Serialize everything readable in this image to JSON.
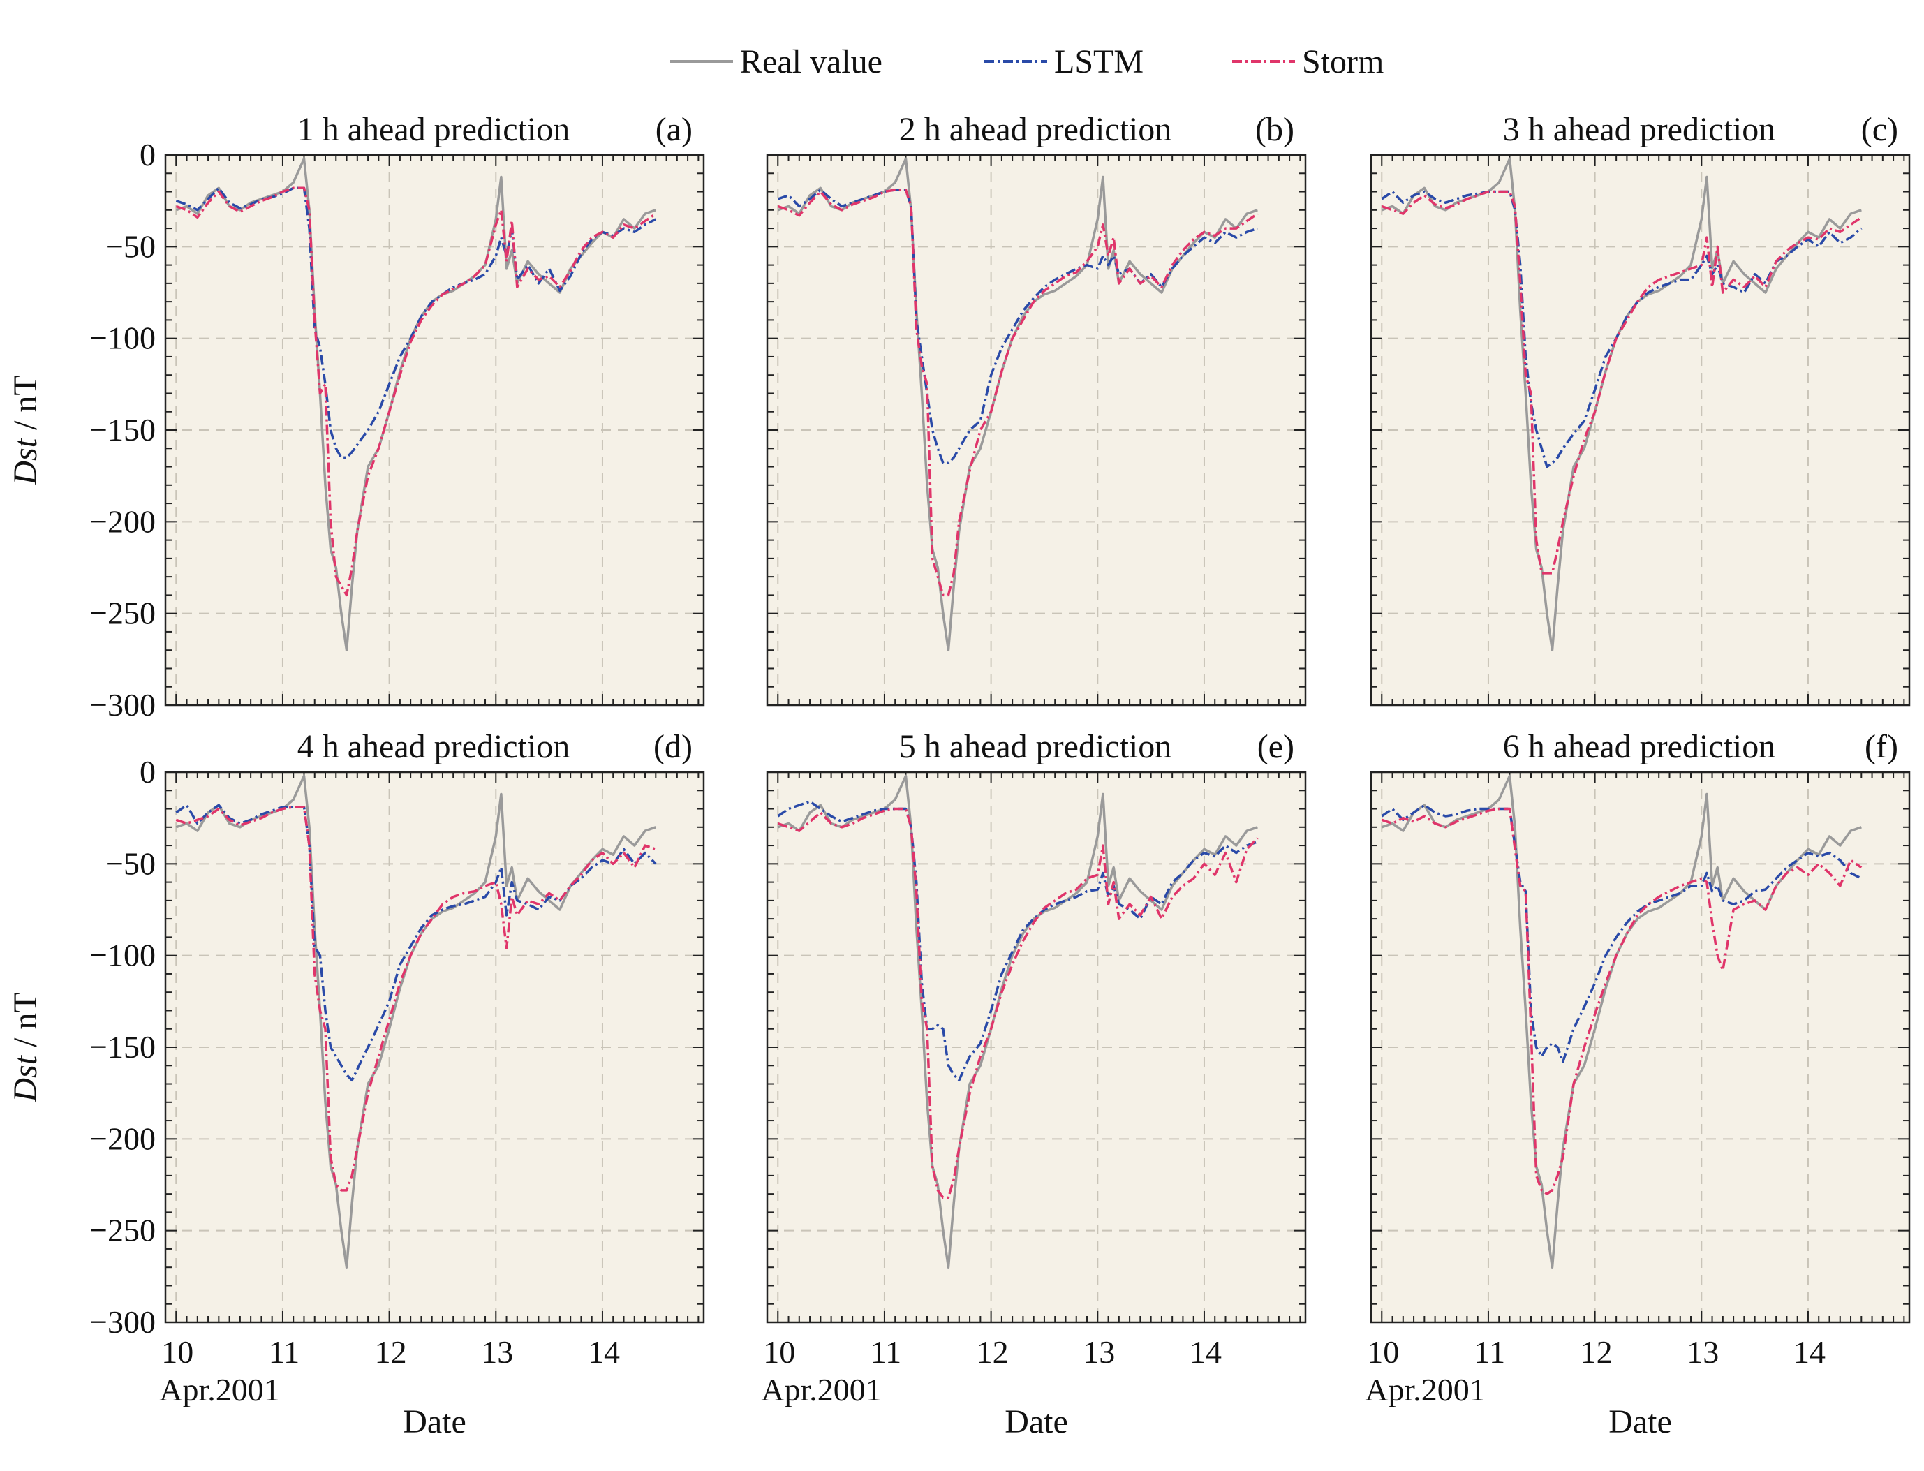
{
  "legend": [
    {
      "key": "real",
      "label": "Real value",
      "color": "#9a9a9a",
      "dash": "solid"
    },
    {
      "key": "lstm",
      "label": "LSTM",
      "color": "#2a4aa8",
      "dash": "dashdot"
    },
    {
      "key": "storm",
      "label": "Storm",
      "color": "#e0356a",
      "dash": "dashdot"
    }
  ],
  "colors": {
    "panel_background": "#f5f1e7",
    "grid": "#c9c4b8",
    "axes": "#222222"
  },
  "xlabel": "Date",
  "ylabel_main": "Dst",
  "ylabel_unit": " / nT",
  "x_month_label": "Apr.2001",
  "chart_data": {
    "type": "line",
    "x_unit": "day of April 2001",
    "xlim": [
      9.9,
      14.95
    ],
    "ylim": [
      -300,
      0
    ],
    "x_ticks": [
      10,
      11,
      12,
      13,
      14
    ],
    "y_ticks": [
      0,
      -50,
      -100,
      -150,
      -200,
      -250,
      -300
    ],
    "grid": true,
    "legend_position": "top-center",
    "x": [
      10.0,
      10.1,
      10.2,
      10.3,
      10.4,
      10.5,
      10.6,
      10.7,
      10.8,
      10.9,
      11.0,
      11.1,
      11.2,
      11.25,
      11.3,
      11.35,
      11.4,
      11.45,
      11.5,
      11.55,
      11.6,
      11.65,
      11.7,
      11.8,
      11.9,
      12.0,
      12.1,
      12.2,
      12.3,
      12.4,
      12.5,
      12.6,
      12.7,
      12.8,
      12.9,
      13.0,
      13.05,
      13.1,
      13.15,
      13.2,
      13.3,
      13.4,
      13.5,
      13.6,
      13.7,
      13.8,
      13.9,
      14.0,
      14.1,
      14.2,
      14.3,
      14.4,
      14.5
    ],
    "real": [
      -30,
      -28,
      -32,
      -22,
      -18,
      -28,
      -30,
      -26,
      -24,
      -22,
      -20,
      -15,
      -2,
      -30,
      -85,
      -130,
      -180,
      -215,
      -225,
      -250,
      -270,
      -235,
      -205,
      -170,
      -160,
      -140,
      -118,
      -100,
      -88,
      -80,
      -76,
      -74,
      -70,
      -66,
      -60,
      -35,
      -12,
      -62,
      -52,
      -70,
      -58,
      -65,
      -70,
      -75,
      -62,
      -55,
      -48,
      -42,
      -45,
      -35,
      -40,
      -32,
      -30
    ],
    "panels": [
      {
        "title": "1 h ahead prediction",
        "tag": "(a)",
        "lstm": [
          -25,
          -27,
          -30,
          -24,
          -18,
          -26,
          -29,
          -27,
          -24,
          -23,
          -21,
          -18,
          -18,
          -40,
          -95,
          -105,
          -125,
          -150,
          -160,
          -165,
          -165,
          -162,
          -158,
          -150,
          -140,
          -125,
          -110,
          -100,
          -88,
          -80,
          -76,
          -72,
          -70,
          -68,
          -65,
          -55,
          -45,
          -55,
          -40,
          -68,
          -60,
          -70,
          -62,
          -74,
          -66,
          -54,
          -46,
          -42,
          -44,
          -40,
          -42,
          -38,
          -35
        ],
        "storm": [
          -28,
          -30,
          -34,
          -26,
          -20,
          -28,
          -31,
          -28,
          -25,
          -23,
          -20,
          -18,
          -18,
          -30,
          -90,
          -130,
          -125,
          -200,
          -230,
          -235,
          -240,
          -225,
          -205,
          -175,
          -160,
          -140,
          -120,
          -102,
          -90,
          -82,
          -76,
          -73,
          -70,
          -66,
          -60,
          -38,
          -30,
          -58,
          -36,
          -72,
          -62,
          -68,
          -66,
          -72,
          -63,
          -52,
          -45,
          -42,
          -45,
          -38,
          -40,
          -36,
          -32
        ]
      },
      {
        "title": "2 h ahead prediction",
        "tag": "(b)",
        "lstm": [
          -24,
          -22,
          -28,
          -24,
          -19,
          -24,
          -28,
          -26,
          -24,
          -22,
          -20,
          -19,
          -19,
          -28,
          -90,
          -110,
          -130,
          -150,
          -160,
          -168,
          -168,
          -165,
          -160,
          -150,
          -145,
          -120,
          -105,
          -95,
          -85,
          -78,
          -72,
          -68,
          -65,
          -62,
          -60,
          -62,
          -55,
          -60,
          -55,
          -65,
          -62,
          -70,
          -65,
          -72,
          -62,
          -55,
          -50,
          -45,
          -48,
          -42,
          -45,
          -42,
          -40
        ],
        "storm": [
          -28,
          -30,
          -33,
          -26,
          -20,
          -27,
          -30,
          -27,
          -25,
          -23,
          -20,
          -19,
          -19,
          -28,
          -95,
          -115,
          -125,
          -220,
          -230,
          -240,
          -240,
          -228,
          -200,
          -172,
          -150,
          -140,
          -118,
          -100,
          -90,
          -80,
          -74,
          -70,
          -66,
          -64,
          -58,
          -50,
          -38,
          -55,
          -45,
          -70,
          -62,
          -70,
          -66,
          -72,
          -60,
          -52,
          -46,
          -42,
          -44,
          -40,
          -40,
          -36,
          -32
        ]
      },
      {
        "title": "3 h ahead prediction",
        "tag": "(c)",
        "lstm": [
          -24,
          -20,
          -26,
          -22,
          -20,
          -24,
          -26,
          -24,
          -22,
          -21,
          -20,
          -20,
          -20,
          -30,
          -60,
          -110,
          -135,
          -150,
          -160,
          -170,
          -168,
          -165,
          -160,
          -152,
          -145,
          -128,
          -110,
          -100,
          -88,
          -80,
          -75,
          -72,
          -70,
          -68,
          -68,
          -60,
          -55,
          -65,
          -60,
          -70,
          -72,
          -75,
          -65,
          -70,
          -58,
          -55,
          -50,
          -46,
          -50,
          -42,
          -48,
          -45,
          -40
        ],
        "storm": [
          -28,
          -30,
          -32,
          -26,
          -22,
          -27,
          -29,
          -27,
          -24,
          -22,
          -20,
          -20,
          -20,
          -28,
          -70,
          -120,
          -130,
          -210,
          -228,
          -228,
          -228,
          -215,
          -200,
          -175,
          -155,
          -140,
          -118,
          -100,
          -90,
          -80,
          -72,
          -68,
          -66,
          -64,
          -62,
          -60,
          -45,
          -72,
          -50,
          -75,
          -68,
          -72,
          -66,
          -72,
          -58,
          -52,
          -48,
          -45,
          -46,
          -40,
          -42,
          -38,
          -34
        ]
      },
      {
        "title": "4 h ahead prediction",
        "tag": "(d)",
        "lstm": [
          -22,
          -18,
          -28,
          -22,
          -18,
          -25,
          -28,
          -26,
          -23,
          -21,
          -19,
          -19,
          -19,
          -40,
          -95,
          -100,
          -130,
          -150,
          -155,
          -160,
          -165,
          -168,
          -162,
          -150,
          -138,
          -125,
          -105,
          -95,
          -85,
          -78,
          -75,
          -73,
          -72,
          -70,
          -68,
          -60,
          -52,
          -78,
          -60,
          -70,
          -72,
          -75,
          -68,
          -70,
          -62,
          -58,
          -52,
          -48,
          -50,
          -42,
          -50,
          -44,
          -50
        ],
        "storm": [
          -26,
          -28,
          -26,
          -24,
          -20,
          -26,
          -29,
          -27,
          -25,
          -22,
          -20,
          -19,
          -19,
          -40,
          -110,
          -130,
          -140,
          -210,
          -225,
          -228,
          -228,
          -220,
          -205,
          -175,
          -155,
          -135,
          -115,
          -100,
          -88,
          -80,
          -72,
          -68,
          -66,
          -65,
          -62,
          -60,
          -72,
          -96,
          -68,
          -78,
          -70,
          -72,
          -66,
          -70,
          -62,
          -56,
          -48,
          -44,
          -50,
          -44,
          -52,
          -40,
          -42
        ]
      },
      {
        "title": "5 h ahead prediction",
        "tag": "(e)",
        "lstm": [
          -24,
          -20,
          -18,
          -16,
          -20,
          -24,
          -27,
          -25,
          -23,
          -21,
          -20,
          -20,
          -20,
          -30,
          -60,
          -115,
          -140,
          -140,
          -138,
          -140,
          -160,
          -165,
          -168,
          -155,
          -148,
          -130,
          -110,
          -98,
          -86,
          -80,
          -75,
          -72,
          -70,
          -68,
          -65,
          -64,
          -55,
          -68,
          -62,
          -72,
          -75,
          -80,
          -68,
          -72,
          -60,
          -55,
          -48,
          -44,
          -46,
          -40,
          -44,
          -40,
          -38
        ],
        "storm": [
          -28,
          -30,
          -32,
          -27,
          -22,
          -28,
          -30,
          -28,
          -25,
          -23,
          -21,
          -20,
          -20,
          -30,
          -65,
          -125,
          -140,
          -215,
          -228,
          -232,
          -232,
          -222,
          -205,
          -175,
          -155,
          -140,
          -120,
          -105,
          -92,
          -82,
          -74,
          -70,
          -66,
          -64,
          -58,
          -56,
          -40,
          -72,
          -60,
          -80,
          -72,
          -78,
          -68,
          -80,
          -68,
          -62,
          -58,
          -50,
          -56,
          -44,
          -60,
          -42,
          -36
        ]
      },
      {
        "title": "6 h ahead prediction",
        "tag": "(f)",
        "lstm": [
          -24,
          -20,
          -26,
          -22,
          -18,
          -22,
          -24,
          -23,
          -21,
          -20,
          -20,
          -20,
          -20,
          -40,
          -60,
          -65,
          -130,
          -150,
          -155,
          -150,
          -148,
          -150,
          -158,
          -140,
          -128,
          -115,
          -100,
          -90,
          -82,
          -76,
          -72,
          -70,
          -68,
          -66,
          -62,
          -62,
          -55,
          -65,
          -62,
          -70,
          -72,
          -70,
          -65,
          -64,
          -58,
          -52,
          -48,
          -44,
          -46,
          -44,
          -48,
          -55,
          -58
        ],
        "storm": [
          -26,
          -28,
          -25,
          -27,
          -24,
          -28,
          -30,
          -27,
          -25,
          -23,
          -21,
          -20,
          -20,
          -42,
          -62,
          -65,
          -140,
          -220,
          -228,
          -230,
          -228,
          -220,
          -210,
          -170,
          -150,
          -132,
          -115,
          -100,
          -88,
          -78,
          -72,
          -68,
          -65,
          -62,
          -60,
          -58,
          -60,
          -82,
          -100,
          -108,
          -75,
          -72,
          -70,
          -75,
          -62,
          -55,
          -52,
          -56,
          -50,
          -55,
          -62,
          -48,
          -52
        ]
      }
    ]
  }
}
